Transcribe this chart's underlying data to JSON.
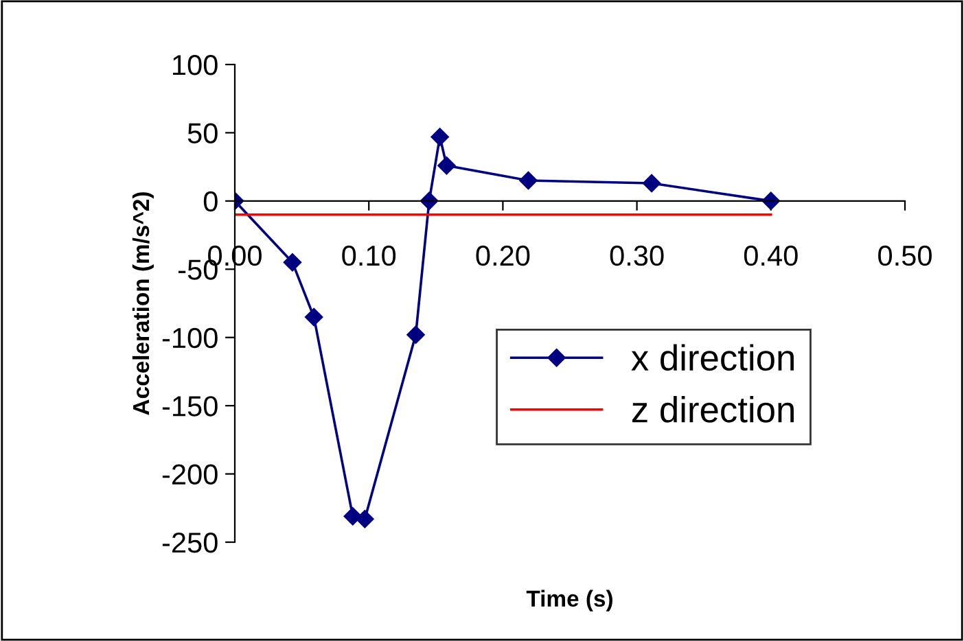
{
  "chart_data": {
    "type": "line",
    "xlabel": "Time (s)",
    "ylabel": "Acceleration (m/s^2)",
    "xlim": [
      0,
      0.5
    ],
    "xticks": [
      {
        "value": 0,
        "label": "0.00"
      },
      {
        "value": 0.1,
        "label": "0.10"
      },
      {
        "value": 0.2,
        "label": "0.20"
      },
      {
        "value": 0.3,
        "label": "0.30"
      },
      {
        "value": 0.4,
        "label": "0.40"
      },
      {
        "value": 0.5,
        "label": "0.50"
      }
    ],
    "ylim": [
      -250,
      100
    ],
    "yticks": [
      -250,
      -200,
      -150,
      -100,
      -50,
      0,
      50,
      100
    ],
    "grid": false,
    "legend": "bottom right",
    "series": [
      {
        "name": "x direction",
        "color": "#000080",
        "marker": "diamond",
        "x": [
          0,
          0.043,
          0.059,
          0.088,
          0.097,
          0.135,
          0.145,
          0.153,
          0.158,
          0.219,
          0.311,
          0.4
        ],
        "values": [
          0,
          -45,
          -85,
          -231,
          -233,
          -98,
          0,
          47,
          26,
          15,
          13,
          0
        ]
      },
      {
        "name": "z direction",
        "color": "#ff0000",
        "marker": "none",
        "x": [
          0,
          0.4
        ],
        "values": [
          -10,
          -10
        ]
      }
    ]
  }
}
